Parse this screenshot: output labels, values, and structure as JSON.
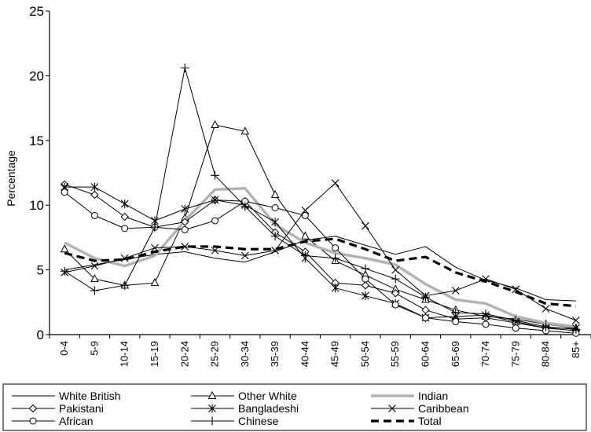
{
  "chart_data": {
    "type": "line",
    "title": "",
    "xlabel": "",
    "ylabel": "Percentage",
    "ylim": [
      0,
      25
    ],
    "yticks": [
      "0",
      "5",
      "10",
      "15",
      "20",
      "25"
    ],
    "grid": false,
    "legend_position": "bottom",
    "categories": [
      "0-4",
      "5-9",
      "10-14",
      "15-19",
      "20-24",
      "25-29",
      "30-34",
      "35-39",
      "40-44",
      "45-49",
      "50-54",
      "55-59",
      "60-64",
      "65-69",
      "70-74",
      "75-79",
      "80-84",
      "85+"
    ],
    "series": [
      {
        "name": "White British",
        "color": "#000000",
        "style": "thin",
        "marker": "none",
        "values": [
          5.0,
          5.4,
          5.8,
          6.2,
          6.4,
          5.9,
          5.6,
          6.4,
          7.3,
          7.6,
          6.9,
          6.2,
          6.8,
          5.2,
          4.2,
          3.6,
          2.7,
          2.6
        ]
      },
      {
        "name": "Other White",
        "color": "#000000",
        "style": "thin",
        "marker": "triangle",
        "values": [
          6.6,
          4.3,
          3.8,
          4.0,
          9.0,
          16.2,
          15.7,
          10.8,
          7.6,
          5.7,
          4.6,
          3.5,
          2.7,
          1.9,
          1.4,
          1.2,
          0.8,
          0.5
        ]
      },
      {
        "name": "Indian",
        "color": "#b3b3b3",
        "style": "thick",
        "marker": "none",
        "values": [
          7.1,
          5.9,
          5.3,
          6.1,
          8.8,
          11.2,
          11.3,
          8.5,
          7.1,
          6.3,
          5.9,
          5.4,
          3.9,
          2.7,
          2.4,
          1.4,
          0.9,
          0.6
        ]
      },
      {
        "name": "Pakistani",
        "color": "#000000",
        "style": "thin",
        "marker": "diamond",
        "values": [
          11.6,
          10.8,
          9.1,
          8.3,
          8.7,
          10.4,
          10.3,
          7.9,
          6.4,
          4.0,
          3.8,
          3.2,
          1.9,
          1.2,
          1.3,
          0.9,
          0.5,
          0.3
        ]
      },
      {
        "name": "Bangladeshi",
        "color": "#000000",
        "style": "thin",
        "marker": "asterisk",
        "values": [
          11.4,
          11.4,
          10.1,
          8.8,
          9.7,
          10.4,
          10.0,
          8.7,
          5.9,
          3.6,
          3.0,
          2.4,
          1.3,
          1.4,
          1.5,
          1.0,
          0.5,
          0.5
        ]
      },
      {
        "name": "Caribbean",
        "color": "#000000",
        "style": "thin",
        "marker": "x",
        "values": [
          4.8,
          5.3,
          5.9,
          6.7,
          6.8,
          6.5,
          6.1,
          6.5,
          9.6,
          11.7,
          8.4,
          5.0,
          3.0,
          3.4,
          4.3,
          3.5,
          2.0,
          1.1
        ]
      },
      {
        "name": "African",
        "color": "#000000",
        "style": "thin",
        "marker": "circle",
        "values": [
          11.0,
          9.2,
          8.2,
          8.3,
          8.1,
          8.8,
          10.3,
          9.8,
          9.2,
          6.7,
          4.3,
          2.3,
          1.3,
          1.0,
          0.8,
          0.5,
          0.3,
          0.1
        ]
      },
      {
        "name": "Chinese",
        "color": "#000000",
        "style": "thin",
        "marker": "plus",
        "values": [
          4.9,
          3.4,
          3.8,
          8.3,
          20.6,
          12.3,
          9.9,
          7.6,
          6.1,
          5.9,
          5.1,
          4.3,
          2.9,
          1.7,
          1.6,
          1.1,
          0.6,
          0.4
        ]
      },
      {
        "name": "Total",
        "color": "#000000",
        "style": "dashed",
        "marker": "none",
        "values": [
          6.3,
          5.7,
          5.8,
          6.4,
          6.8,
          6.8,
          6.6,
          6.6,
          7.2,
          7.4,
          6.6,
          5.7,
          6.0,
          4.8,
          4.1,
          3.3,
          2.4,
          2.2
        ]
      }
    ]
  }
}
